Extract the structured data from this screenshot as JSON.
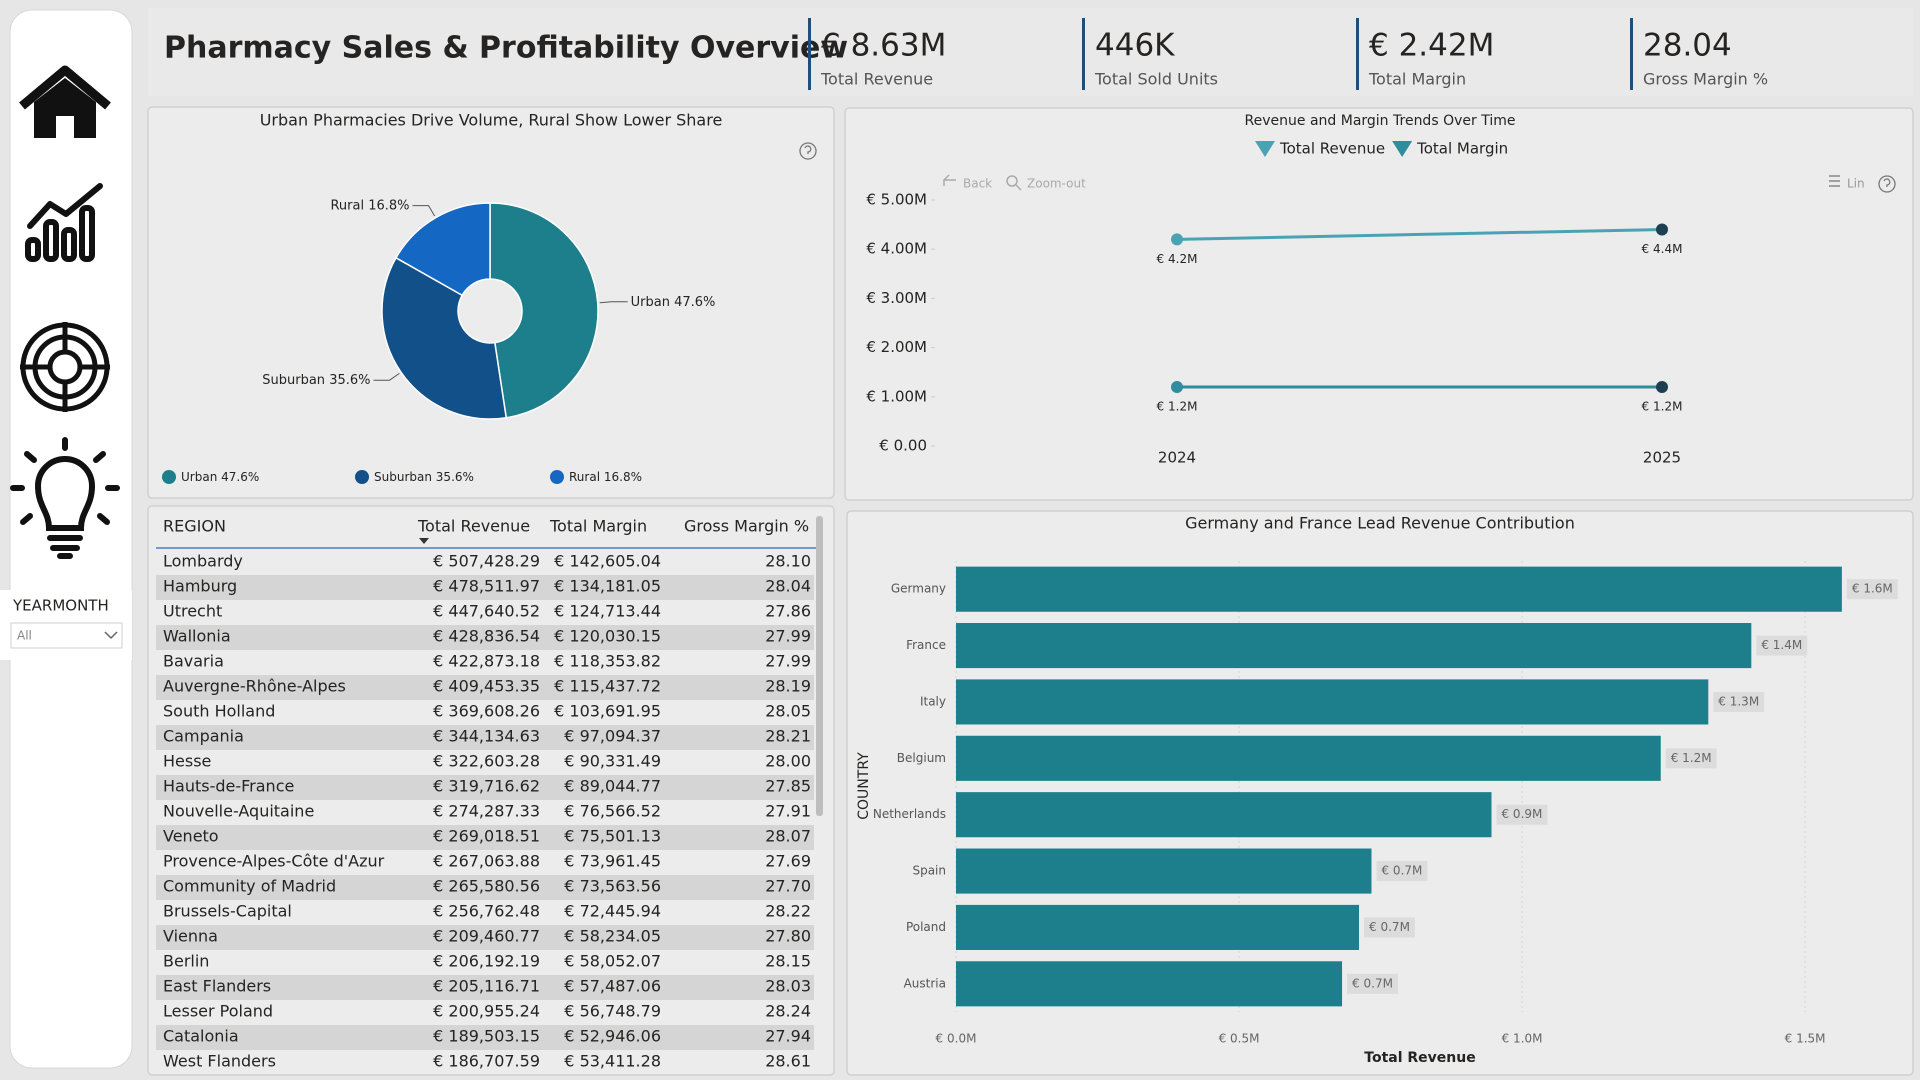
{
  "header": {
    "title": "Pharmacy Sales & Profitability Overview"
  },
  "kpis": [
    {
      "value": "€ 8.63M",
      "label": "Total Revenue"
    },
    {
      "value": "446K",
      "label": "Total Sold Units"
    },
    {
      "value": "€ 2.42M",
      "label": "Total Margin"
    },
    {
      "value": "28.04",
      "label": "Gross Margin %"
    }
  ],
  "filter": {
    "label": "YEARMONTH",
    "value": "All"
  },
  "visual_toolbar": {
    "back": "Back",
    "zoom_out": "Zoom-out",
    "scale": "Lin"
  },
  "chart_data": [
    {
      "type": "pie",
      "title": "Urban Pharmacies Drive Volume, Rural Show Lower Share",
      "categories": [
        "Urban",
        "Suburban",
        "Rural"
      ],
      "values": [
        47.6,
        35.6,
        16.8
      ],
      "value_labels": [
        "47.6%",
        "35.6%",
        "16.8%"
      ],
      "colors": [
        "#1e7f8c",
        "#12508a",
        "#1467c2"
      ],
      "donut": true
    },
    {
      "type": "line",
      "title": "Revenue and Margin Trends Over Time",
      "categories": [
        "2024",
        "2025"
      ],
      "series": [
        {
          "name": "Total Revenue",
          "color": "#4aa3b4",
          "values": [
            4200000,
            4400000
          ],
          "value_labels": [
            "€ 4.2M",
            "€ 4.4M"
          ]
        },
        {
          "name": "Total Margin",
          "color": "#2f8d9d",
          "values": [
            1200000,
            1200000
          ],
          "value_labels": [
            "€ 1.2M",
            "€ 1.2M"
          ]
        }
      ],
      "ylim": [
        0,
        5000000
      ],
      "yticks": [
        {
          "value": 0,
          "label": "€ 0.00"
        },
        {
          "value": 1000000,
          "label": "€ 1.00M"
        },
        {
          "value": 2000000,
          "label": "€ 2.00M"
        },
        {
          "value": 3000000,
          "label": "€ 3.00M"
        },
        {
          "value": 4000000,
          "label": "€ 4.00M"
        },
        {
          "value": 5000000,
          "label": "€ 5.00M"
        }
      ],
      "grid": false,
      "legend": "top"
    },
    {
      "type": "hbar",
      "title": "Germany and France Lead Revenue Contribution",
      "x_label": "Total Revenue",
      "y_label": "COUNTRY",
      "categories": [
        "Germany",
        "France",
        "Italy",
        "Belgium",
        "Netherlands",
        "Spain",
        "Poland",
        "Austria"
      ],
      "values": [
        1565000,
        1405000,
        1329000,
        1245000,
        946000,
        734000,
        712000,
        682000
      ],
      "value_labels": [
        "€ 1.6M",
        "€ 1.4M",
        "€ 1.3M",
        "€ 1.2M",
        "€ 0.9M",
        "€ 0.7M",
        "€ 0.7M",
        "€ 0.7M"
      ],
      "color": "#1e7f8c",
      "xlim": [
        0,
        1650000
      ],
      "xticks": [
        {
          "value": 0,
          "label": "€ 0.0M"
        },
        {
          "value": 500000,
          "label": "€ 0.5M"
        },
        {
          "value": 1000000,
          "label": "€ 1.0M"
        },
        {
          "value": 1500000,
          "label": "€ 1.5M"
        }
      ],
      "grid": true
    }
  ],
  "table": {
    "columns": [
      "REGION",
      "Total Revenue",
      "Total Margin",
      "Gross Margin %"
    ],
    "rows": [
      [
        "Lombardy",
        "€ 507,428.29",
        "€ 142,605.04",
        "28.10"
      ],
      [
        "Hamburg",
        "€ 478,511.97",
        "€ 134,181.05",
        "28.04"
      ],
      [
        "Utrecht",
        "€ 447,640.52",
        "€ 124,713.44",
        "27.86"
      ],
      [
        "Wallonia",
        "€ 428,836.54",
        "€ 120,030.15",
        "27.99"
      ],
      [
        "Bavaria",
        "€ 422,873.18",
        "€ 118,353.82",
        "27.99"
      ],
      [
        "Auvergne-Rhône-Alpes",
        "€ 409,453.35",
        "€ 115,437.72",
        "28.19"
      ],
      [
        "South Holland",
        "€ 369,608.26",
        "€ 103,691.95",
        "28.05"
      ],
      [
        "Campania",
        "€ 344,134.63",
        "€ 97,094.37",
        "28.21"
      ],
      [
        "Hesse",
        "€ 322,603.28",
        "€ 90,331.49",
        "28.00"
      ],
      [
        "Hauts-de-France",
        "€ 319,716.62",
        "€ 89,044.77",
        "27.85"
      ],
      [
        "Nouvelle-Aquitaine",
        "€ 274,287.33",
        "€ 76,566.52",
        "27.91"
      ],
      [
        "Veneto",
        "€ 269,018.51",
        "€ 75,501.13",
        "28.07"
      ],
      [
        "Provence-Alpes-Côte d'Azur",
        "€ 267,063.88",
        "€ 73,961.45",
        "27.69"
      ],
      [
        "Community of Madrid",
        "€ 265,580.56",
        "€ 73,563.56",
        "27.70"
      ],
      [
        "Brussels-Capital",
        "€ 256,762.48",
        "€ 72,445.94",
        "28.22"
      ],
      [
        "Vienna",
        "€ 209,460.77",
        "€ 58,234.05",
        "27.80"
      ],
      [
        "Berlin",
        "€ 206,192.19",
        "€ 58,052.07",
        "28.15"
      ],
      [
        "East Flanders",
        "€ 205,116.71",
        "€ 57,487.06",
        "28.03"
      ],
      [
        "Lesser Poland",
        "€ 200,955.24",
        "€ 56,748.79",
        "28.24"
      ],
      [
        "Catalonia",
        "€ 189,503.15",
        "€ 52,946.06",
        "27.94"
      ],
      [
        "West Flanders",
        "€ 186,707.59",
        "€ 53,411.28",
        "28.61"
      ]
    ]
  }
}
